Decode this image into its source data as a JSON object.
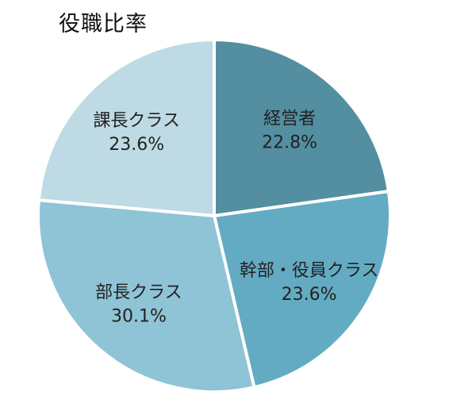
{
  "chart_data": {
    "type": "pie",
    "title": "役職比率",
    "slices": [
      {
        "label": "経営者",
        "value": 22.8,
        "display": "22.8%",
        "color": "#538ea1"
      },
      {
        "label": "幹部・役員クラス",
        "value": 23.6,
        "display": "23.6%",
        "color": "#63abc3"
      },
      {
        "label": "部長クラス",
        "value": 30.1,
        "display": "30.1%",
        "color": "#8fc3d6"
      },
      {
        "label": "課長クラス",
        "value": 23.6,
        "display": "23.6%",
        "color": "#bedae5"
      }
    ],
    "start_angle": "12 o'clock",
    "direction": "clockwise",
    "legend": "none"
  }
}
